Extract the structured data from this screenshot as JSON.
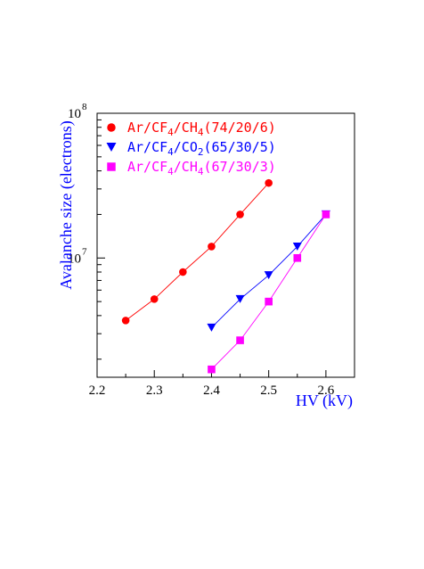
{
  "chart_data": {
    "type": "line",
    "xlabel": "HV (kV)",
    "ylabel": "Avalanche size (electrons)",
    "xlim": [
      2.2,
      2.65
    ],
    "ylim": [
      1500000,
      100000000
    ],
    "yscale": "log",
    "x_ticks": [
      "2.2",
      "2.3",
      "2.4",
      "2.5",
      "2.6"
    ],
    "y_ticks": [
      {
        "base": "10",
        "exp": "7",
        "value": 10000000
      },
      {
        "base": "10",
        "exp": "8",
        "value": 100000000
      }
    ],
    "grid": false,
    "legend": "top-left",
    "series": [
      {
        "name_parts": [
          [
            "Ar/CF",
            ""
          ],
          [
            "4",
            "sub"
          ],
          [
            "/CH",
            ""
          ],
          [
            "4",
            "sub"
          ],
          [
            "(74/20/6)",
            ""
          ]
        ],
        "color": "#ff0000",
        "marker": "circle",
        "x": [
          2.25,
          2.3,
          2.35,
          2.4,
          2.45,
          2.5
        ],
        "y": [
          3700000,
          5200000,
          8000000,
          12000000,
          20000000,
          33000000
        ]
      },
      {
        "name_parts": [
          [
            "Ar/CF",
            ""
          ],
          [
            "4",
            "sub"
          ],
          [
            "/CO",
            ""
          ],
          [
            "2",
            "sub"
          ],
          [
            "(65/30/5)",
            ""
          ]
        ],
        "color": "#0000ff",
        "marker": "triangle-down",
        "x": [
          2.4,
          2.45,
          2.5,
          2.55,
          2.6
        ],
        "y": [
          3300000,
          5200000,
          7600000,
          12000000,
          20000000
        ]
      },
      {
        "name_parts": [
          [
            "Ar/CF",
            ""
          ],
          [
            "4",
            "sub"
          ],
          [
            "/CH",
            ""
          ],
          [
            "4",
            "sub"
          ],
          [
            "(67/30/3)",
            ""
          ]
        ],
        "color": "#ff00ff",
        "marker": "square",
        "x": [
          2.4,
          2.45,
          2.5,
          2.55,
          2.6
        ],
        "y": [
          1700000,
          2700000,
          5000000,
          10000000,
          20000000
        ]
      }
    ]
  }
}
